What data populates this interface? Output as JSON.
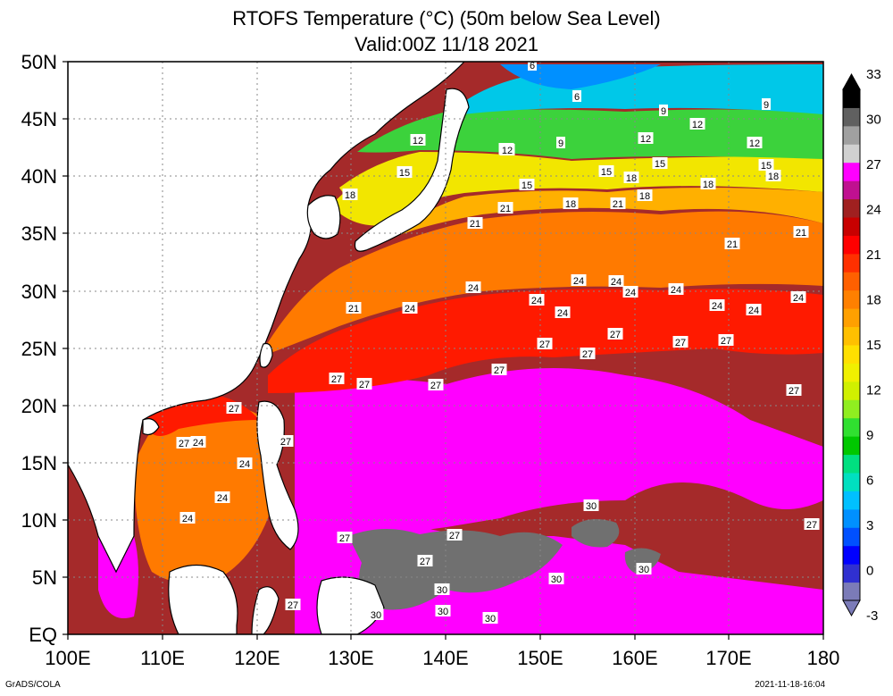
{
  "title": "RTOFS Temperature (°C) (50m below Sea Level)",
  "subtitle": "Valid:00Z 11/18 2021",
  "x_ticks": [
    "100E",
    "110E",
    "120E",
    "130E",
    "140E",
    "150E",
    "160E",
    "170E",
    "180"
  ],
  "y_ticks": [
    "EQ",
    "5N",
    "10N",
    "15N",
    "20N",
    "25N",
    "30N",
    "35N",
    "40N",
    "45N",
    "50N"
  ],
  "colorbar": {
    "labels": [
      "-3",
      "0",
      "3",
      "6",
      "9",
      "12",
      "15",
      "18",
      "21",
      "24",
      "27",
      "30",
      "33"
    ],
    "colors": [
      "#7b7bb8",
      "#3030d0",
      "#0000ff",
      "#0050ff",
      "#0090ff",
      "#00c0ff",
      "#00e0c0",
      "#00e080",
      "#00c800",
      "#30e030",
      "#90ee20",
      "#d0f000",
      "#f0f000",
      "#ffe000",
      "#ffc000",
      "#ffa000",
      "#ff8000",
      "#ff6000",
      "#ff3000",
      "#ff0000",
      "#c80000",
      "#a02020",
      "#c01090",
      "#ff00ff",
      "#d0d0d0",
      "#a0a0a0",
      "#606060",
      "#000000"
    ]
  },
  "contour_labels": [
    "6",
    "6",
    "9",
    "9",
    "9",
    "12",
    "12",
    "12",
    "12",
    "12",
    "12",
    "15",
    "15",
    "15",
    "15",
    "15",
    "18",
    "18",
    "18",
    "18",
    "18",
    "18",
    "21",
    "21",
    "21",
    "21",
    "21",
    "21",
    "24",
    "24",
    "24",
    "24",
    "24",
    "24",
    "24",
    "24",
    "24",
    "24",
    "24",
    "24",
    "24",
    "24",
    "24",
    "27",
    "27",
    "27",
    "27",
    "27",
    "27",
    "27",
    "27",
    "27",
    "27",
    "27",
    "27",
    "27",
    "27",
    "27",
    "27",
    "27",
    "27",
    "30",
    "30",
    "30",
    "30",
    "30",
    "30",
    "30",
    "30",
    "30"
  ],
  "footer_left": "GrADS/COLA",
  "footer_right": "2021-11-18-16:04"
}
